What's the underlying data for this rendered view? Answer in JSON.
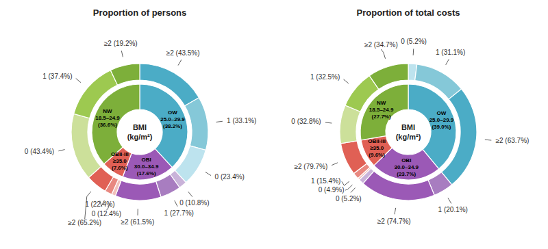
{
  "chart_data": [
    {
      "type": "pie",
      "title": "Proportion of persons",
      "center_label": "BMI\n(kg/m²)",
      "inner": {
        "labels": [
          "OW\n25.0–29.9\n(38.2%)",
          "OBI\n30.0–34.9\n(17.6%)",
          "OBII-III\n≥35.0\n(7.6%)",
          "NW\n18.5–24.9\n(36.6%)"
        ],
        "values": [
          38.2,
          17.6,
          7.6,
          36.6
        ],
        "colors": [
          "#4BACC6",
          "#9B59B6",
          "#E06055",
          "#7DAF3A"
        ]
      },
      "outer": [
        {
          "labels": [
            "≥2 (43.5%)",
            "1 (33.1%)",
            "0 (23.4%)"
          ],
          "values": [
            43.5,
            33.1,
            23.4
          ],
          "colors": [
            "#4BACC6",
            "#85C8D8",
            "#BDE3EE"
          ]
        },
        {
          "labels": [
            "0 (10.8%)",
            "1 (27.7%)",
            "≥2 (61.5%)"
          ],
          "values": [
            10.8,
            27.7,
            61.5
          ],
          "colors": [
            "#C9B3D9",
            "#A87DC0",
            "#9B59B6"
          ]
        },
        {
          "labels": [
            "0 (12.4%)",
            "1 (22.4%)",
            "≥2 (65.2%)"
          ],
          "values": [
            12.4,
            22.4,
            65.2
          ],
          "colors": [
            "#F2C0BB",
            "#E88880",
            "#E06055"
          ]
        },
        {
          "labels": [
            "0 (43.4%)",
            "1 (37.4%)",
            "≥2 (19.2%)"
          ],
          "values": [
            43.4,
            37.4,
            19.2
          ],
          "colors": [
            "#CCE09A",
            "#9DC950",
            "#7DAF3A"
          ]
        }
      ]
    },
    {
      "type": "pie",
      "title": "Proportion of total costs",
      "center_label": "BMI\n(kg/m²)",
      "inner": {
        "labels": [
          "OW\n25.0–29.9\n(39.0%)",
          "OBI\n30.0–34.9\n(23.7%)",
          "OBII-III\n≥35.0\n(9.6%)",
          "NW\n18.5–24.9\n(27.7%)"
        ],
        "values": [
          39.0,
          23.7,
          9.6,
          27.7
        ],
        "colors": [
          "#4BACC6",
          "#9B59B6",
          "#E06055",
          "#7DAF3A"
        ]
      },
      "outer": [
        {
          "labels": [
            "0 (5.2%)",
            "1 (31.1%)",
            "≥2 (63.7%)"
          ],
          "values": [
            5.2,
            31.1,
            63.7
          ],
          "colors": [
            "#BDE3EE",
            "#85C8D8",
            "#4BACC6"
          ]
        },
        {
          "labels": [
            "1 (20.1%)",
            "≥2 (74.7%)",
            "0 (5.2%)"
          ],
          "values": [
            20.1,
            74.7,
            5.2
          ],
          "colors": [
            "#A87DC0",
            "#9B59B6",
            "#C9B3D9"
          ]
        },
        {
          "labels": [
            "0 (4.9%)",
            "1 (15.4%)",
            "≥2 (79.7%)"
          ],
          "values": [
            4.9,
            15.4,
            79.7
          ],
          "colors": [
            "#F2C0BB",
            "#E88880",
            "#E06055"
          ]
        },
        {
          "labels": [
            "0 (32.8%)",
            "1 (32.5%)",
            "≥2 (34.7%)"
          ],
          "values": [
            32.8,
            32.5,
            34.7
          ],
          "colors": [
            "#CCE09A",
            "#9DC950",
            "#7DAF3A"
          ]
        }
      ]
    }
  ]
}
